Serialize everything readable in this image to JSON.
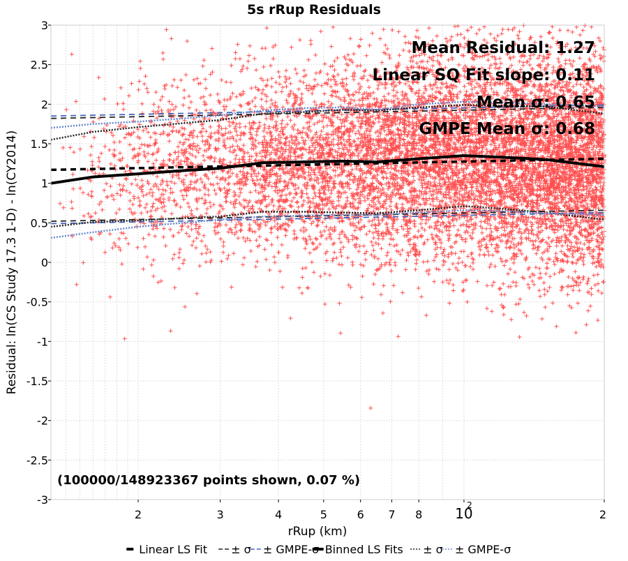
{
  "chart_data": {
    "type": "scatter",
    "title": "5s rRup Residuals",
    "xlabel": "rRup (km)",
    "ylabel": "Residual: ln(CS Study 17.3 1-D) - ln(CY2014)",
    "x_scale": "log",
    "xlim": [
      13,
      200
    ],
    "ylim": [
      -3,
      3
    ],
    "x_ticks": [
      {
        "value": 20,
        "label": "2"
      },
      {
        "value": 30,
        "label": "3"
      },
      {
        "value": 40,
        "label": "4"
      },
      {
        "value": 50,
        "label": "5"
      },
      {
        "value": 60,
        "label": "6"
      },
      {
        "value": 70,
        "label": "7"
      },
      {
        "value": 80,
        "label": "8"
      },
      {
        "value": 100,
        "label": "10",
        "exponent": "2"
      },
      {
        "value": 200,
        "label": "2"
      }
    ],
    "y_ticks": [
      {
        "value": 3,
        "label": "3"
      },
      {
        "value": 2.5,
        "label": "2.5"
      },
      {
        "value": 2,
        "label": "2"
      },
      {
        "value": 1.5,
        "label": "1.5"
      },
      {
        "value": 1,
        "label": "1"
      },
      {
        "value": 0.5,
        "label": "0.5"
      },
      {
        "value": 0,
        "label": "0"
      },
      {
        "value": -0.5,
        "label": "-0.5"
      },
      {
        "value": -1,
        "label": "-1"
      },
      {
        "value": -1.5,
        "label": "-1.5"
      },
      {
        "value": -2,
        "label": "-2"
      },
      {
        "value": -2.5,
        "label": "-2.5"
      },
      {
        "value": -3,
        "label": "-3"
      }
    ],
    "grid": true,
    "annotations": [
      "Mean Residual: 1.27",
      "Linear SQ Fit slope: 0.11",
      "Mean σ: 0.65",
      "GMPE Mean σ: 0.68"
    ],
    "points_note": "(100000/148923367 points shown, 0.07 %)",
    "scatter_color": "#ff5050",
    "series": [
      {
        "name": "Linear LS Fit",
        "style": "dashed",
        "color": "#000000",
        "x": [
          13,
          200
        ],
        "y": [
          1.17,
          1.31
        ]
      },
      {
        "name": "± σ",
        "group": "linear",
        "style": "dashed",
        "color": "#222222",
        "x": [
          13,
          200
        ],
        "y_upper": [
          1.82,
          1.96
        ],
        "y_lower": [
          0.52,
          0.66
        ]
      },
      {
        "name": "± GMPE-σ",
        "group": "linear",
        "style": "dashed",
        "color": "#4466bb",
        "x": [
          13,
          200
        ],
        "y_upper": [
          1.85,
          1.99
        ],
        "y_lower": [
          0.49,
          0.63
        ]
      },
      {
        "name": "Binned LS Fits",
        "style": "solid",
        "color": "#000000",
        "x": [
          13,
          16,
          20,
          25,
          30,
          37,
          45,
          55,
          65,
          80,
          100,
          120,
          150,
          200
        ],
        "y": [
          1.0,
          1.08,
          1.12,
          1.16,
          1.19,
          1.26,
          1.27,
          1.28,
          1.27,
          1.31,
          1.35,
          1.33,
          1.3,
          1.21
        ]
      },
      {
        "name": "± σ",
        "group": "binned",
        "style": "dotted",
        "color": "#222222",
        "x": [
          13,
          16,
          20,
          25,
          30,
          37,
          45,
          55,
          65,
          80,
          100,
          120,
          150,
          200
        ],
        "y_upper": [
          1.55,
          1.65,
          1.71,
          1.76,
          1.8,
          1.88,
          1.9,
          1.93,
          1.92,
          1.96,
          1.99,
          1.98,
          1.97,
          1.88
        ],
        "y_lower": [
          0.45,
          0.51,
          0.53,
          0.56,
          0.58,
          0.64,
          0.64,
          0.63,
          0.62,
          0.66,
          0.71,
          0.68,
          0.63,
          0.54
        ]
      },
      {
        "name": "± GMPE-σ",
        "group": "binned",
        "style": "dotted",
        "color": "#6688cc",
        "x": [
          13,
          16,
          20,
          25,
          30,
          37,
          45,
          55,
          65,
          80,
          100,
          120,
          150,
          200
        ],
        "y_upper": [
          1.7,
          1.75,
          1.78,
          1.82,
          1.86,
          1.92,
          1.95,
          1.96,
          1.93,
          2.0,
          2.03,
          2.02,
          2.0,
          1.97
        ],
        "y_lower": [
          0.31,
          0.38,
          0.45,
          0.5,
          0.54,
          0.58,
          0.59,
          0.6,
          0.6,
          0.63,
          0.66,
          0.65,
          0.62,
          0.6
        ]
      }
    ],
    "legend": {
      "position": "bottom",
      "items": [
        {
          "label": "Linear LS Fit",
          "style": "thick-dash",
          "color": "#000000"
        },
        {
          "label": "± σ",
          "style": "dash",
          "color": "#222222"
        },
        {
          "label": "± GMPE-σ",
          "style": "dash",
          "color": "#4466bb"
        },
        {
          "label": "Binned LS Fits",
          "style": "thick-solid",
          "color": "#000000"
        },
        {
          "label": "± σ",
          "style": "dot",
          "color": "#222222"
        },
        {
          "label": "± GMPE-σ",
          "style": "dot",
          "color": "#6688cc"
        }
      ]
    }
  }
}
